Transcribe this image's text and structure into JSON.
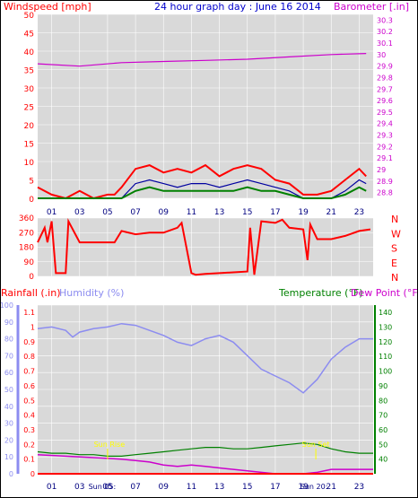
{
  "header": {
    "title": "24 hour graph day : June 16 2014",
    "left_label": "Windspeed [mph]",
    "right_label": "Barometer [.in]"
  },
  "colors": {
    "background": "#d9d9d9",
    "wind": "#ff0000",
    "gust": "#0000a0",
    "wind2": "#008000",
    "barometer": "#cc00cc",
    "direction": "#ff0000",
    "humidity": "#8c8cf0",
    "temperature": "#008000",
    "dewpoint": "#cc00cc",
    "rain": "#ff0000",
    "sun": "#ffff00",
    "grid": "#ffffff",
    "title": "#0000cc"
  },
  "chart_data": [
    {
      "type": "line",
      "name": "wind-and-barometer",
      "left_axis": {
        "label": "Windspeed [mph]",
        "ticks": [
          "50",
          "45",
          "40",
          "35",
          "30",
          "25",
          "20",
          "15",
          "10",
          "5",
          "0"
        ],
        "ylim": [
          0,
          50
        ]
      },
      "right_axis": {
        "label": "Barometer [.in]",
        "ticks": [
          "30.3",
          "30.2",
          "30.1",
          "30",
          "29.9",
          "29.8",
          "29.7",
          "29.6",
          "29.5",
          "29.4",
          "29.3",
          "29.2",
          "29.1",
          "29",
          "28.9",
          "28.8"
        ],
        "ylim": [
          28.75,
          30.35
        ]
      },
      "x_ticks": [
        "01",
        "03",
        "05",
        "07",
        "09",
        "11",
        "13",
        "15",
        "17",
        "19",
        "21",
        "23"
      ],
      "barometer": {
        "x": [
          0,
          3,
          6,
          9,
          12,
          15,
          18,
          21,
          23.5
        ],
        "y": [
          29.92,
          29.9,
          29.93,
          29.94,
          29.95,
          29.96,
          29.98,
          30.0,
          30.01
        ]
      },
      "windspeed": {
        "x": [
          0,
          1,
          2,
          3,
          4,
          5,
          5.5,
          6,
          7,
          8,
          9,
          10,
          11,
          12,
          13,
          14,
          15,
          16,
          17,
          18,
          19,
          20,
          21,
          22,
          23,
          23.5
        ],
        "y": [
          3,
          1,
          0,
          2,
          0,
          1,
          1,
          3,
          8,
          9,
          7,
          8,
          7,
          9,
          6,
          8,
          9,
          8,
          5,
          4,
          1,
          1,
          2,
          5,
          8,
          6
        ]
      },
      "gust": {
        "x": [
          0,
          6,
          7,
          8,
          9,
          10,
          11,
          12,
          13,
          14,
          15,
          16,
          17,
          18,
          19,
          21,
          22,
          23,
          23.5
        ],
        "y": [
          0,
          0,
          4,
          5,
          4,
          3,
          4,
          4,
          3,
          4,
          5,
          4,
          3,
          2,
          0,
          0,
          2,
          5,
          4
        ]
      },
      "average": {
        "x": [
          0,
          6,
          7,
          8,
          9,
          10,
          11,
          12,
          13,
          14,
          15,
          16,
          17,
          18,
          19,
          21,
          22,
          23,
          23.5
        ],
        "y": [
          0,
          0,
          2,
          3,
          2,
          2,
          2,
          2,
          2,
          2,
          3,
          2,
          2,
          1,
          0,
          0,
          1,
          3,
          2
        ]
      }
    },
    {
      "type": "line",
      "name": "wind-direction",
      "left_ticks": [
        "360",
        "270",
        "180",
        "90",
        "0"
      ],
      "right_ticks": [
        "N",
        "W",
        "S",
        "E",
        "N"
      ],
      "ylim": [
        0,
        360
      ],
      "x": [
        0,
        0.5,
        0.7,
        1.0,
        1.3,
        2.0,
        2.2,
        3.0,
        4.0,
        5.5,
        6.0,
        7.0,
        8.0,
        9.0,
        10.0,
        10.3,
        11.0,
        11.3,
        12.0,
        13.0,
        14.0,
        15.0,
        15.2,
        15.5,
        16.0,
        17.0,
        17.5,
        18.0,
        19.0,
        19.3,
        19.5,
        20.0,
        21.0,
        22.0,
        23.0,
        23.8
      ],
      "y": [
        210,
        300,
        210,
        340,
        20,
        20,
        340,
        210,
        210,
        210,
        280,
        260,
        270,
        270,
        300,
        330,
        20,
        10,
        15,
        20,
        25,
        30,
        300,
        10,
        340,
        330,
        350,
        300,
        290,
        100,
        320,
        230,
        230,
        250,
        280,
        290
      ]
    },
    {
      "type": "line",
      "name": "rain-humidity-temperature",
      "left_axis_humidity": {
        "label": "Humidity (%)",
        "ticks": [
          "100",
          "90",
          "80",
          "70",
          "60",
          "50",
          "40",
          "30",
          "20",
          "10",
          "0"
        ],
        "ylim": [
          0,
          100
        ]
      },
      "left_axis_rain": {
        "label": "Rainfall (.in)",
        "ticks": [
          "1.1",
          "1",
          "0.9",
          "0.8",
          "0.7",
          "0.6",
          "0.5",
          "0.4",
          "0.3",
          "0.2",
          "0.1",
          "0"
        ],
        "ylim": [
          0,
          1.15
        ]
      },
      "right_axis": {
        "label_temp": "Temperature (°F)",
        "label_dew": "Dew Point (°F)",
        "ticks": [
          "140",
          "130",
          "120",
          "110",
          "100",
          "90",
          "80",
          "70",
          "60",
          "50",
          "40"
        ],
        "ylim": [
          30,
          145
        ]
      },
      "x_ticks": [
        "01",
        "03",
        "05",
        "07",
        "09",
        "11",
        "13",
        "15",
        "17",
        "19",
        "21",
        "23"
      ],
      "sun_labels": {
        "rise": "Sun Rise",
        "set": "Sun Set",
        "rise_x": 5.0,
        "set_x": 19.9
      },
      "mid_labels": [
        "Sun 05:",
        "Sun 20:"
      ],
      "humidity": {
        "x": [
          0,
          1,
          2,
          2.5,
          3,
          4,
          5,
          6,
          7,
          8,
          9,
          10,
          11,
          12,
          13,
          14,
          15,
          16,
          17,
          18,
          19,
          20,
          21,
          22,
          23,
          24
        ],
        "y": [
          86,
          87,
          85,
          81,
          84,
          86,
          87,
          89,
          88,
          85,
          82,
          78,
          76,
          80,
          82,
          78,
          70,
          62,
          58,
          54,
          48,
          56,
          68,
          75,
          80,
          80
        ]
      },
      "temperature": {
        "x": [
          0,
          1,
          2,
          3,
          4,
          5,
          6,
          7,
          8,
          9,
          10,
          11,
          12,
          13,
          14,
          15,
          16,
          17,
          18,
          19,
          20,
          21,
          22,
          23,
          24
        ],
        "y": [
          45,
          44,
          44,
          43,
          43,
          42,
          42,
          43,
          44,
          45,
          46,
          47,
          48,
          48,
          47,
          47,
          48,
          49,
          50,
          51,
          50,
          47,
          45,
          44,
          44
        ]
      },
      "rain": {
        "x": [
          0,
          24
        ],
        "y": [
          0,
          0
        ]
      },
      "dewpoint": {
        "x": [
          0,
          2,
          4,
          6,
          7,
          8,
          9,
          10,
          11,
          12,
          13,
          14,
          15,
          16,
          17,
          18,
          19,
          20,
          21,
          22,
          23,
          24
        ],
        "y": [
          43,
          42,
          41,
          40,
          39,
          38,
          36,
          35,
          36,
          35,
          34,
          33,
          32,
          31,
          30,
          30,
          30,
          31,
          33,
          33,
          33,
          33
        ]
      }
    }
  ]
}
